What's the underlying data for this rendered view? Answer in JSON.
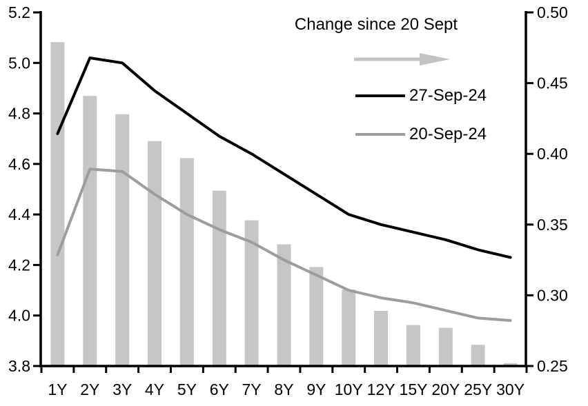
{
  "chart_data": {
    "type": "combo-bar-line",
    "categories": [
      "1Y",
      "2Y",
      "3Y",
      "4Y",
      "5Y",
      "6Y",
      "7Y",
      "8Y",
      "9Y",
      "10Y",
      "12Y",
      "15Y",
      "20Y",
      "25Y",
      "30Y"
    ],
    "series": [
      {
        "name": "Change since 20 Sept",
        "type": "bar",
        "axis": "right",
        "color": "#c6c6c6",
        "values": [
          0.479,
          0.441,
          0.428,
          0.409,
          0.397,
          0.374,
          0.353,
          0.336,
          0.32,
          0.304,
          0.289,
          0.279,
          0.277,
          0.265,
          0.252
        ]
      },
      {
        "name": "27-Sep-24",
        "type": "line",
        "axis": "left",
        "color": "#000000",
        "values": [
          4.72,
          5.02,
          5.0,
          4.89,
          4.8,
          4.71,
          4.64,
          4.56,
          4.48,
          4.4,
          4.36,
          4.33,
          4.3,
          4.26,
          4.23
        ]
      },
      {
        "name": "20-Sep-24",
        "type": "line",
        "axis": "left",
        "color": "#9d9d9d",
        "values": [
          4.24,
          4.58,
          4.57,
          4.48,
          4.4,
          4.34,
          4.29,
          4.22,
          4.16,
          4.1,
          4.07,
          4.05,
          4.02,
          3.99,
          3.98
        ]
      }
    ],
    "left_axis": {
      "min": 3.8,
      "max": 5.2,
      "tick_labels": [
        "5.2",
        "5.0",
        "4.8",
        "4.6",
        "4.4",
        "4.2",
        "4.0",
        "3.8"
      ]
    },
    "right_axis": {
      "min": 0.25,
      "max": 0.5,
      "tick_labels": [
        "0.50",
        "0.45",
        "0.40",
        "0.35",
        "0.30",
        "0.25"
      ]
    },
    "grid": "off",
    "legend": {
      "position": "top-center-inside",
      "title": "Change since 20 Sept",
      "arrow_color": "#c2c2c2",
      "entries": [
        {
          "label": "27-Sep-24",
          "color": "#000000"
        },
        {
          "label": "20-Sep-24",
          "color": "#9d9d9d"
        }
      ]
    }
  }
}
